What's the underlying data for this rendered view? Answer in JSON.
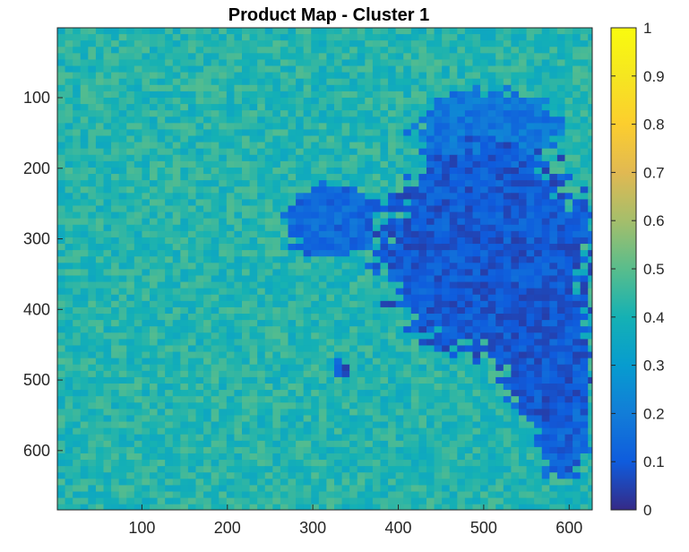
{
  "chart_data": {
    "type": "heatmap",
    "title": "Product Map - Cluster 1",
    "xlabel": "",
    "ylabel": "",
    "xlim": [
      1,
      627
    ],
    "ylim": [
      1,
      684
    ],
    "y_reversed": true,
    "x_ticks": [
      100,
      200,
      300,
      400,
      500,
      600
    ],
    "y_ticks": [
      100,
      200,
      300,
      400,
      500,
      600
    ],
    "colorbar": {
      "colormap": "parula",
      "range": [
        0,
        1
      ],
      "ticks": [
        "0",
        "0.1",
        "0.2",
        "0.3",
        "0.4",
        "0.5",
        "0.6",
        "0.7",
        "0.8",
        "0.9",
        "1"
      ]
    },
    "background_level": 0.42,
    "low_value_regions": [
      {
        "x": [
          380,
          627
        ],
        "y": [
          170,
          470
        ],
        "value": 0.04
      },
      {
        "x": [
          520,
          627
        ],
        "y": [
          350,
          560
        ],
        "value": 0.04
      },
      {
        "x": [
          560,
          627
        ],
        "y": [
          500,
          640
        ],
        "value": 0.06
      },
      {
        "x": [
          270,
          380
        ],
        "y": [
          220,
          330
        ],
        "value": 0.08
      },
      {
        "x": [
          420,
          590
        ],
        "y": [
          90,
          200
        ],
        "value": 0.12
      },
      {
        "x": [
          320,
          345
        ],
        "y": [
          470,
          500
        ],
        "value": 0.03
      }
    ]
  }
}
